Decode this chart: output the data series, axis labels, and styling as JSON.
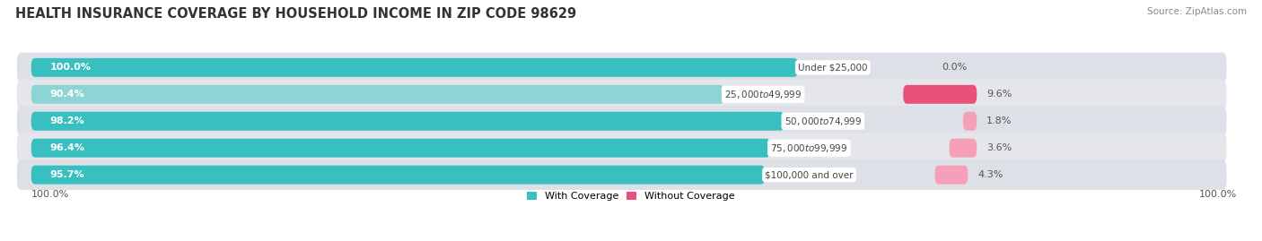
{
  "title": "HEALTH INSURANCE COVERAGE BY HOUSEHOLD INCOME IN ZIP CODE 98629",
  "source": "Source: ZipAtlas.com",
  "categories": [
    "Under $25,000",
    "$25,000 to $49,999",
    "$50,000 to $74,999",
    "$75,000 to $99,999",
    "$100,000 and over"
  ],
  "with_coverage": [
    100.0,
    90.4,
    98.2,
    96.4,
    95.7
  ],
  "without_coverage": [
    0.0,
    9.6,
    1.8,
    3.6,
    4.3
  ],
  "color_with": "#38bfc0",
  "color_without_bright": "#e8517a",
  "color_without_light": "#f5a0b8",
  "color_with_light": "#8dd4d4",
  "fig_bg": "#ffffff",
  "row_bg": "#e8e8ec",
  "bottom_labels": [
    "100.0%",
    "100.0%"
  ],
  "legend_with": "With Coverage",
  "legend_without": "Without Coverage",
  "title_fontsize": 10.5,
  "bar_label_fontsize": 8,
  "cat_label_fontsize": 7.5,
  "source_fontsize": 7.5,
  "lighter_row": 1
}
